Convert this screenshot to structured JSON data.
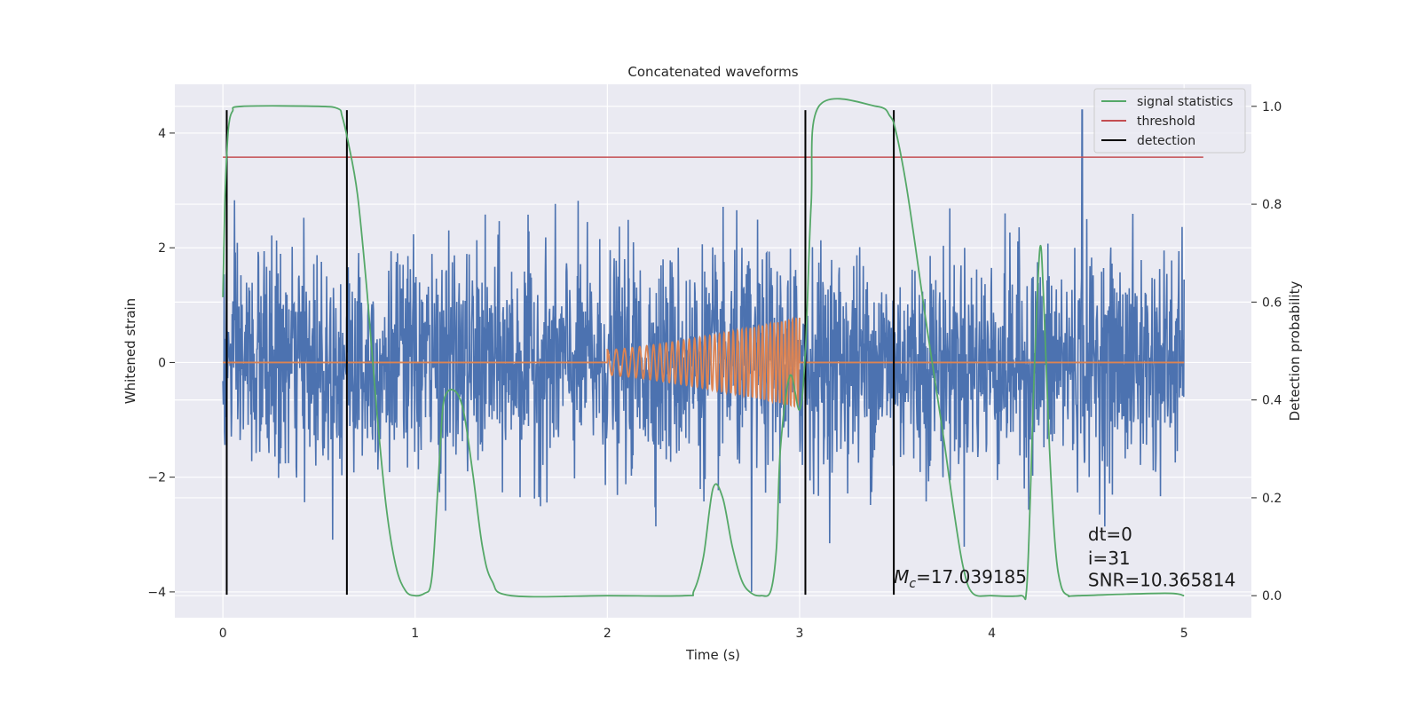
{
  "chart_data": {
    "type": "line",
    "title": "Concatenated waveforms",
    "xlabel": "Time (s)",
    "ylabel": "Whitened strain",
    "ylabel_right": "Detection probability",
    "xlim": [
      -0.25,
      5.35
    ],
    "ylim": [
      -4.45,
      4.85
    ],
    "ylim_right": [
      -0.045,
      1.045
    ],
    "xticks": [
      0,
      1,
      2,
      3,
      4,
      5
    ],
    "yticks": [
      -4,
      -2,
      0,
      2,
      4
    ],
    "yticks_right": [
      0.0,
      0.2,
      0.4,
      0.6,
      0.8,
      1.0
    ],
    "grid": true,
    "legend_position": "top-right",
    "colors": {
      "noise": "#4c72b0",
      "waveform": "#dd8452",
      "statistic": "#55a868",
      "threshold": "#c44e52",
      "detection": "#000000",
      "background": "#eaeaf2",
      "grid": "#ffffff"
    },
    "series": [
      {
        "key": "noise",
        "axis": "left",
        "x_range": [
          0,
          5
        ],
        "amplitude_std": 1.0,
        "peak_min": -4.0,
        "peak_max": 4.4,
        "peak_max_at": 4.47
      },
      {
        "key": "waveform",
        "axis": "left",
        "x_range": [
          2.0,
          3.0
        ],
        "amplitude_start": 0.22,
        "amplitude_end": 0.78,
        "cycles": 38
      },
      {
        "name": "signal statistics",
        "key": "statistic",
        "axis": "right",
        "x": [
          0.0,
          0.01,
          0.02,
          0.03,
          0.05,
          0.1,
          0.5,
          0.6,
          0.62,
          0.65,
          0.7,
          0.75,
          0.8,
          0.85,
          0.9,
          0.95,
          1.0,
          1.05,
          1.08,
          1.1,
          1.13,
          1.15,
          1.2,
          1.25,
          1.3,
          1.35,
          1.4,
          1.5,
          2.0,
          2.4,
          2.45,
          2.5,
          2.55,
          2.6,
          2.65,
          2.7,
          2.75,
          2.8,
          2.85,
          2.88,
          2.9,
          2.95,
          3.0,
          3.03,
          3.06,
          3.1,
          3.4,
          3.47,
          3.5,
          3.55,
          3.6,
          3.65,
          3.7,
          3.75,
          3.8,
          3.85,
          3.9,
          4.0,
          4.15,
          4.18,
          4.2,
          4.22,
          4.25,
          4.27,
          4.3,
          4.33,
          4.36,
          4.4,
          4.45,
          4.9,
          5.0
        ],
        "y": [
          0.61,
          0.8,
          0.9,
          0.96,
          0.99,
          1.0,
          1.0,
          0.995,
          0.98,
          0.93,
          0.82,
          0.62,
          0.38,
          0.18,
          0.06,
          0.01,
          0.0,
          0.005,
          0.02,
          0.1,
          0.3,
          0.4,
          0.42,
          0.38,
          0.25,
          0.1,
          0.03,
          0.0,
          0.0,
          0.0,
          0.01,
          0.08,
          0.22,
          0.2,
          0.1,
          0.03,
          0.005,
          0.0,
          0.01,
          0.1,
          0.3,
          0.45,
          0.38,
          0.5,
          0.8,
          1.0,
          1.0,
          0.98,
          0.95,
          0.85,
          0.72,
          0.58,
          0.45,
          0.32,
          0.18,
          0.06,
          0.005,
          0.0,
          0.0,
          0.01,
          0.2,
          0.45,
          0.71,
          0.6,
          0.3,
          0.1,
          0.02,
          0.0,
          0.0,
          0.005,
          0.0
        ]
      },
      {
        "name": "threshold",
        "key": "threshold",
        "axis": "left",
        "x": [
          0,
          5.1
        ],
        "y": [
          3.58,
          3.58
        ]
      },
      {
        "name": "detection",
        "key": "detection",
        "axis": "left",
        "x": [
          0.02,
          0.645,
          3.03,
          3.49
        ],
        "y_range": [
          -4.05,
          4.4
        ]
      }
    ],
    "legend": [
      {
        "label": "signal statistics",
        "color_key": "statistic"
      },
      {
        "label": "threshold",
        "color_key": "threshold"
      },
      {
        "label": "detection",
        "color_key": "detection"
      }
    ],
    "annotations": {
      "mc": {
        "symbol": "M",
        "subscript": "c",
        "value": "=17.039185",
        "x": 3.49,
        "y": -3.85
      },
      "dt": {
        "text": "dt=0",
        "x": 4.5,
        "y": -3.1
      },
      "i": {
        "text": "i=31",
        "x": 4.5,
        "y": -3.52
      },
      "snr": {
        "text": "SNR=10.365814",
        "x": 4.5,
        "y": -3.9
      }
    }
  }
}
